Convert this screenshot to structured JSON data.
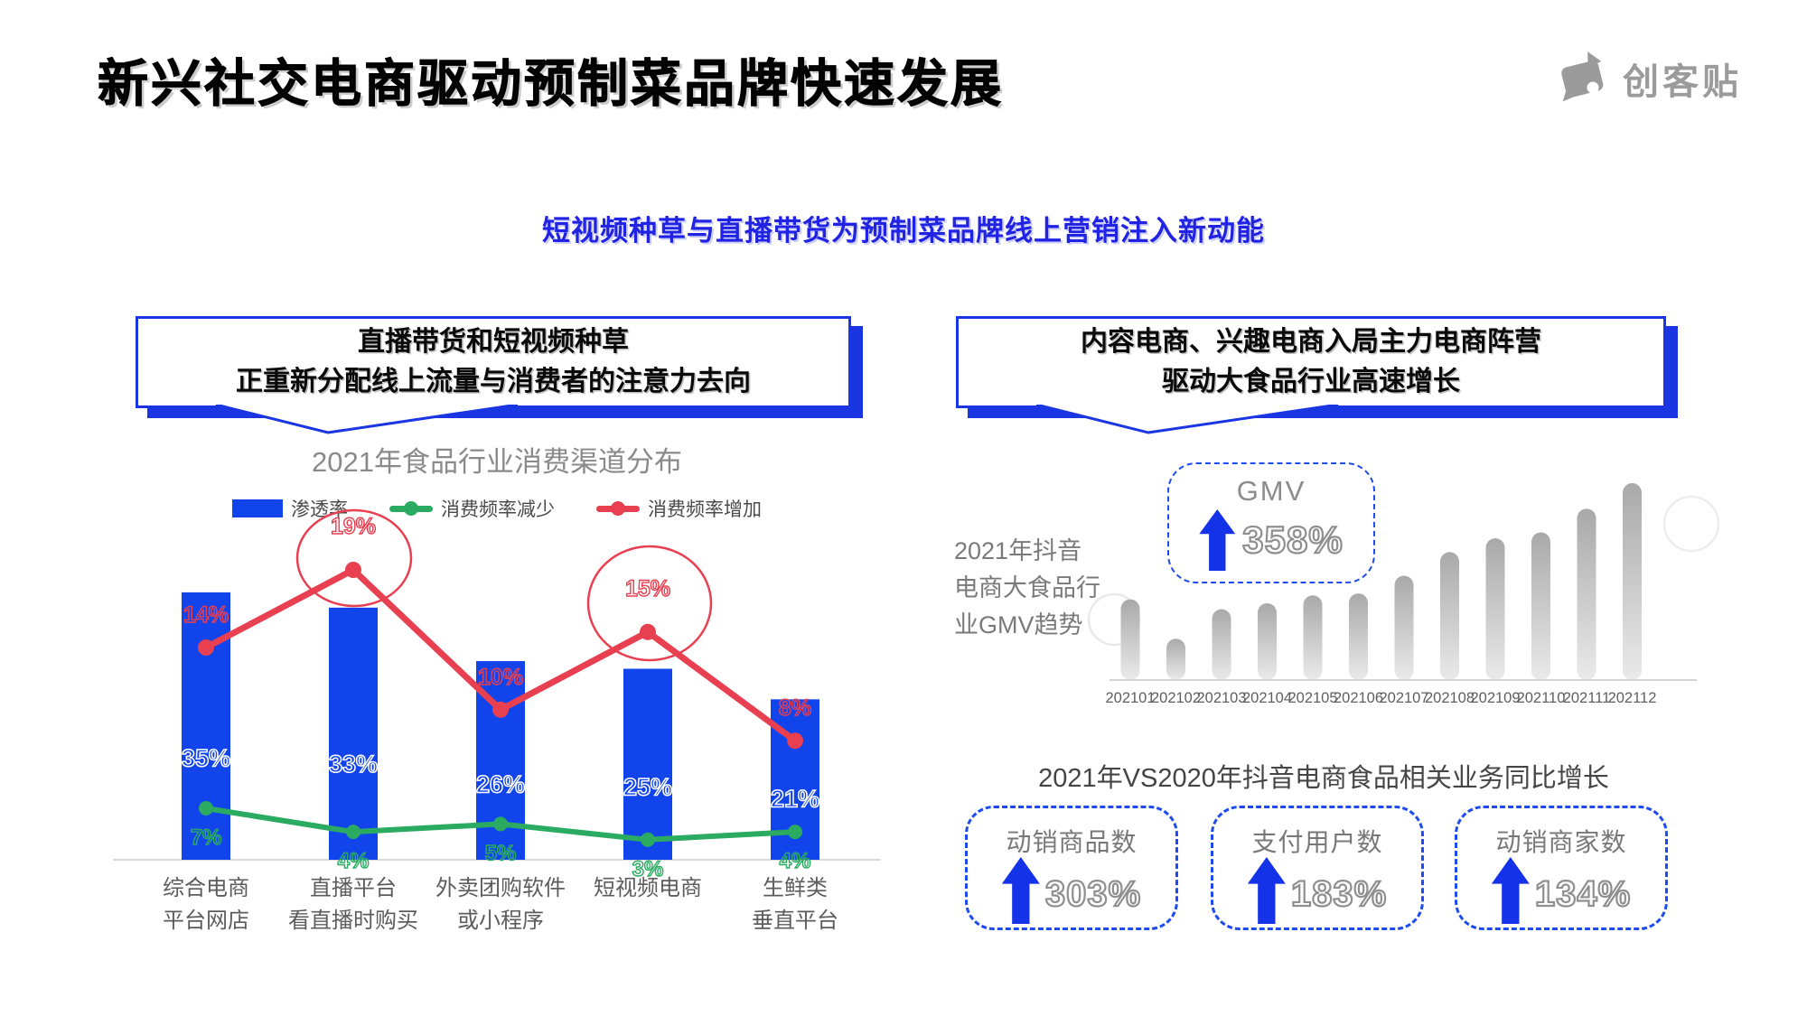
{
  "page": {
    "title": "新兴社交电商驱动预制菜品牌快速发展",
    "subtitle": "短视频种草与直播带货为预制菜品牌线上营销注入新动能",
    "logo_text": "创客贴"
  },
  "left_section": {
    "bubble_line1": "直播带货和短视频种草",
    "bubble_line2": "正重新分配线上流量与消费者的注意力去向"
  },
  "right_section": {
    "bubble_line1": "内容电商、兴趣电商入局主力电商阵营",
    "bubble_line2": "驱动大食品行业高速增长",
    "growth_title": "2021年VS2020年抖音电商食品相关业务同比增长",
    "stats": [
      {
        "label": "动销商品数",
        "value": "303%"
      },
      {
        "label": "支付用户数",
        "value": "183%"
      },
      {
        "label": "动销商家数",
        "value": "134%"
      }
    ]
  },
  "colors": {
    "bar_blue": "#1244ec",
    "line_green": "#2bab62",
    "line_red": "#e83f51",
    "bubble_blue": "#1a35e2",
    "dashed_blue": "#1e4bf1",
    "arrow_blue": "#1433e8",
    "gray_bar_top": "#a9a9a9",
    "gray_bar_bottom": "#eaeaea"
  },
  "chart_data": [
    {
      "type": "bar+line",
      "title": "2021年食品行业消费渠道分布",
      "categories": [
        [
          "综合电商",
          "平台网店"
        ],
        [
          "直播平台",
          "看直播时购买"
        ],
        [
          "外卖团购软件",
          "或小程序"
        ],
        [
          "短视频电商"
        ],
        [
          "生鲜类",
          "垂直平台"
        ]
      ],
      "series": [
        {
          "name": "渗透率",
          "type": "bar",
          "color": "#1244ec",
          "unit": "%",
          "values": [
            35,
            33,
            26,
            25,
            21
          ]
        },
        {
          "name": "消费频率减少",
          "type": "line",
          "color": "#2bab62",
          "unit": "%",
          "values": [
            7,
            4,
            5,
            3,
            4
          ]
        },
        {
          "name": "消费频率增加",
          "type": "line",
          "color": "#e83f51",
          "unit": "%",
          "values": [
            14,
            19,
            10,
            15,
            8
          ]
        }
      ],
      "highlighted_points": [
        {
          "series": "消费频率增加",
          "category_index": 1,
          "value": 19
        },
        {
          "series": "消费频率增加",
          "category_index": 3,
          "value": 15
        }
      ],
      "legend_position": "top",
      "grid": false
    },
    {
      "type": "bar",
      "title": "2021年抖音电商大食品行业GMV趋势",
      "title_lines": [
        "2021年抖音",
        "电商大食品行",
        "业GMV趋势"
      ],
      "categories": [
        "202101",
        "202102",
        "202103",
        "202104",
        "202105",
        "202106",
        "202107",
        "202108",
        "202109",
        "202110",
        "202111",
        "202112"
      ],
      "values": [
        41,
        21,
        36,
        39,
        43,
        44,
        53,
        65,
        72,
        75,
        87,
        100
      ],
      "value_note": "relative GMV index (no y-axis labels shown)",
      "annotation": {
        "label": "GMV",
        "value": "358%"
      },
      "grid": false,
      "legend_position": "none"
    }
  ]
}
